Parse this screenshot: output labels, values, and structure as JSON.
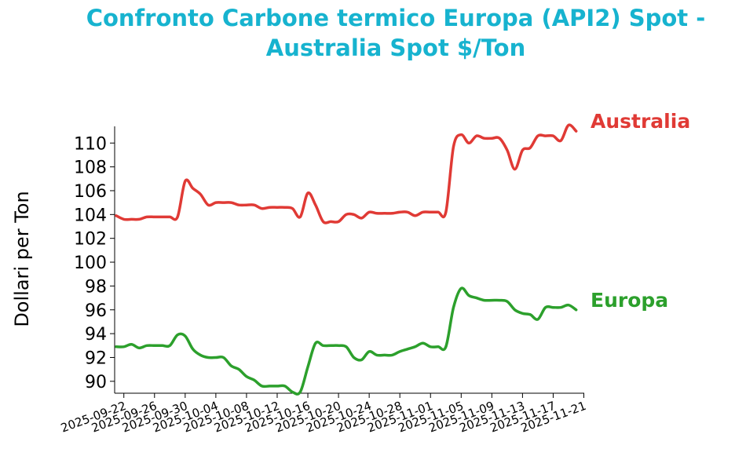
{
  "chart_data": {
    "type": "line",
    "title": "Confronto Carbone termico Europa (API2) Spot - Australia Spot $/Ton",
    "xlabel": "",
    "ylabel": "Dollari per Ton",
    "x": [
      "2025-09-21",
      "2025-09-22",
      "2025-09-23",
      "2025-09-24",
      "2025-09-25",
      "2025-09-26",
      "2025-09-27",
      "2025-09-28",
      "2025-09-29",
      "2025-09-30",
      "2025-10-01",
      "2025-10-02",
      "2025-10-03",
      "2025-10-04",
      "2025-10-05",
      "2025-10-06",
      "2025-10-07",
      "2025-10-08",
      "2025-10-09",
      "2025-10-10",
      "2025-10-11",
      "2025-10-12",
      "2025-10-13",
      "2025-10-14",
      "2025-10-15",
      "2025-10-16",
      "2025-10-17",
      "2025-10-18",
      "2025-10-19",
      "2025-10-20",
      "2025-10-21",
      "2025-10-22",
      "2025-10-23",
      "2025-10-24",
      "2025-10-25",
      "2025-10-26",
      "2025-10-27",
      "2025-10-28",
      "2025-10-29",
      "2025-10-30",
      "2025-10-31",
      "2025-11-01",
      "2025-11-02",
      "2025-11-03",
      "2025-11-04",
      "2025-11-05",
      "2025-11-06",
      "2025-11-07",
      "2025-11-08",
      "2025-11-09",
      "2025-11-10",
      "2025-11-11",
      "2025-11-12",
      "2025-11-13",
      "2025-11-14",
      "2025-11-15",
      "2025-11-16",
      "2025-11-17",
      "2025-11-18",
      "2025-11-19",
      "2025-11-20"
    ],
    "x_ticks": [
      "2025-09-22",
      "2025-09-26",
      "2025-09-30",
      "2025-10-04",
      "2025-10-08",
      "2025-10-12",
      "2025-10-16",
      "2025-10-20",
      "2025-10-24",
      "2025-10-28",
      "2025-11-01",
      "2025-11-05",
      "2025-11-09",
      "2025-11-13",
      "2025-11-17",
      "2025-11-21"
    ],
    "y_ticks": [
      90,
      92,
      94,
      96,
      98,
      100,
      102,
      104,
      106,
      108,
      110
    ],
    "ylim": [
      89,
      111.4
    ],
    "series": [
      {
        "name": "Australia",
        "color": "#e03a35",
        "values": [
          103.9,
          103.6,
          103.6,
          103.6,
          103.8,
          103.8,
          103.8,
          103.8,
          103.8,
          106.8,
          106.2,
          105.7,
          104.8,
          105.0,
          105.0,
          105.0,
          104.8,
          104.8,
          104.8,
          104.5,
          104.6,
          104.6,
          104.6,
          104.5,
          103.8,
          105.8,
          104.8,
          103.4,
          103.4,
          103.4,
          104.0,
          104.0,
          103.7,
          104.2,
          104.1,
          104.1,
          104.1,
          104.2,
          104.2,
          103.9,
          104.2,
          104.2,
          104.2,
          104.2,
          109.7,
          110.7,
          110.0,
          110.6,
          110.4,
          110.4,
          110.4,
          109.4,
          107.8,
          109.4,
          109.6,
          110.6,
          110.6,
          110.6,
          110.2,
          111.5,
          111.0
        ]
      },
      {
        "name": "Europa",
        "color": "#2ca02c",
        "values": [
          92.9,
          92.9,
          93.1,
          92.8,
          93.0,
          93.0,
          93.0,
          93.0,
          93.9,
          93.8,
          92.7,
          92.2,
          92.0,
          92.0,
          92.0,
          91.3,
          91.0,
          90.4,
          90.1,
          89.6,
          89.6,
          89.6,
          89.6,
          89.1,
          89.1,
          91.2,
          93.2,
          93.0,
          93.0,
          93.0,
          92.9,
          92.0,
          91.8,
          92.5,
          92.2,
          92.2,
          92.2,
          92.5,
          92.7,
          92.9,
          93.2,
          92.9,
          92.9,
          92.9,
          96.2,
          97.8,
          97.2,
          97.0,
          96.8,
          96.8,
          96.8,
          96.7,
          96.0,
          95.7,
          95.6,
          95.2,
          96.2,
          96.2,
          96.2,
          96.4,
          96.0
        ]
      }
    ],
    "series_labels": [
      {
        "name": "Australia",
        "text": "Australia",
        "color": "#e03a35"
      },
      {
        "name": "Europa",
        "text": "Europa",
        "color": "#2ca02c"
      }
    ],
    "grid": false,
    "legend": "inline-right"
  }
}
